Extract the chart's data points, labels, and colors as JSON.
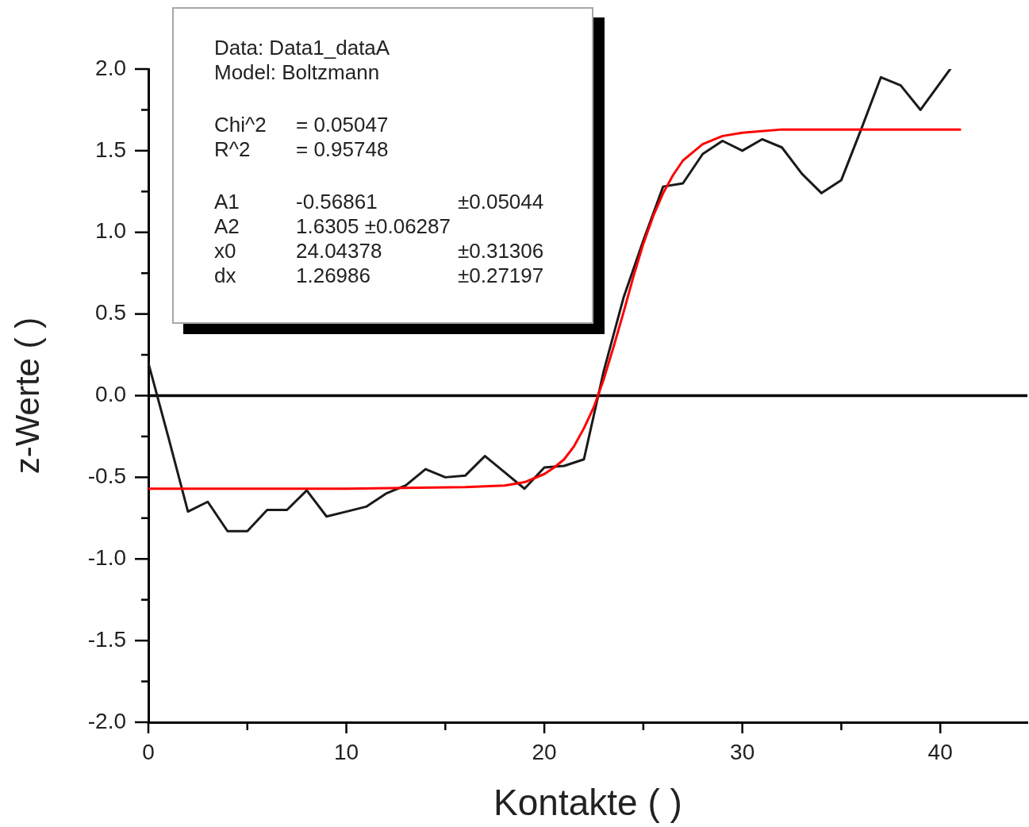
{
  "chart_data": {
    "type": "line",
    "xlabel": "Kontakte ( )",
    "ylabel": "z-Werte ( )",
    "xlim": [
      0,
      44.4
    ],
    "ylim": [
      -2,
      2
    ],
    "xticks": [
      0,
      {
        "value": 5,
        "label": null
      },
      10,
      {
        "value": 15,
        "label": null
      },
      20,
      {
        "value": 25,
        "label": null
      },
      30,
      {
        "value": 35,
        "label": null
      },
      40
    ],
    "yticks": [
      {
        "value": -2,
        "label": "-2.0"
      },
      {
        "value": -1.75,
        "label": null
      },
      {
        "value": -1.5,
        "label": "-1.5"
      },
      {
        "value": -1.25,
        "label": null
      },
      {
        "value": -1,
        "label": "-1.0"
      },
      {
        "value": -0.75,
        "label": null
      },
      {
        "value": -0.5,
        "label": "-0.5"
      },
      {
        "value": -0.25,
        "label": null
      },
      {
        "value": 0,
        "label": "0.0"
      },
      {
        "value": 0.25,
        "label": null
      },
      {
        "value": 0.5,
        "label": "0.5"
      },
      {
        "value": 0.75,
        "label": null
      },
      {
        "value": 1,
        "label": "1.0"
      },
      {
        "value": 1.25,
        "label": null
      },
      {
        "value": 1.5,
        "label": "1.5"
      },
      {
        "value": 1.75,
        "label": null
      },
      {
        "value": 2,
        "label": "2.0"
      }
    ],
    "series": [
      {
        "color": "#1a1a1a",
        "x": [
          0,
          1,
          2,
          3,
          4,
          5,
          6,
          7,
          8,
          9,
          10,
          11,
          12,
          13,
          14,
          15,
          16,
          17,
          18,
          19,
          20,
          21,
          22,
          23,
          24,
          25,
          26,
          27,
          28,
          29,
          30,
          31,
          32,
          33,
          34,
          35,
          36,
          37,
          38,
          39,
          40.5
        ],
        "values": [
          0.2,
          -0.25,
          -0.71,
          -0.65,
          -0.83,
          -0.83,
          -0.7,
          -0.7,
          -0.58,
          -0.74,
          -0.71,
          -0.68,
          -0.6,
          -0.55,
          -0.45,
          -0.5,
          -0.49,
          -0.37,
          -0.47,
          -0.57,
          -0.44,
          -0.43,
          -0.39,
          0.15,
          0.6,
          0.95,
          1.28,
          1.3,
          1.48,
          1.56,
          1.5,
          1.57,
          1.52,
          1.36,
          1.24,
          1.32,
          1.63,
          1.95,
          1.9,
          1.75,
          2.0
        ]
      },
      {
        "color": "#ff0000",
        "x": [
          0,
          10,
          16,
          18,
          19,
          20,
          20.5,
          21,
          21.5,
          22,
          22.5,
          23,
          23.5,
          24,
          24.5,
          25,
          25.5,
          26,
          26.5,
          27,
          27.5,
          28,
          29,
          30,
          32,
          35,
          41
        ],
        "values": [
          -0.57,
          -0.57,
          -0.56,
          -0.55,
          -0.53,
          -0.48,
          -0.44,
          -0.39,
          -0.31,
          -0.2,
          -0.07,
          0.1,
          0.3,
          0.51,
          0.73,
          0.93,
          1.1,
          1.24,
          1.35,
          1.44,
          1.49,
          1.54,
          1.59,
          1.61,
          1.63,
          1.63,
          1.63
        ]
      }
    ],
    "ref_lines": [
      {
        "axis": "y",
        "value": 0,
        "color": "#000000"
      }
    ],
    "marker": "none",
    "annotations": [
      "Data: Data1_dataA\nModel: Boltzmann",
      "Chi^2\t= 0.05047\nR^2\t= 0.95748",
      "A1\t-0.56861\t±0.05044\nA2\t1.6305 ±0.06287\nx0\t24.04378\t±0.31306\ndx\t1.26986\t±0.27197"
    ]
  }
}
